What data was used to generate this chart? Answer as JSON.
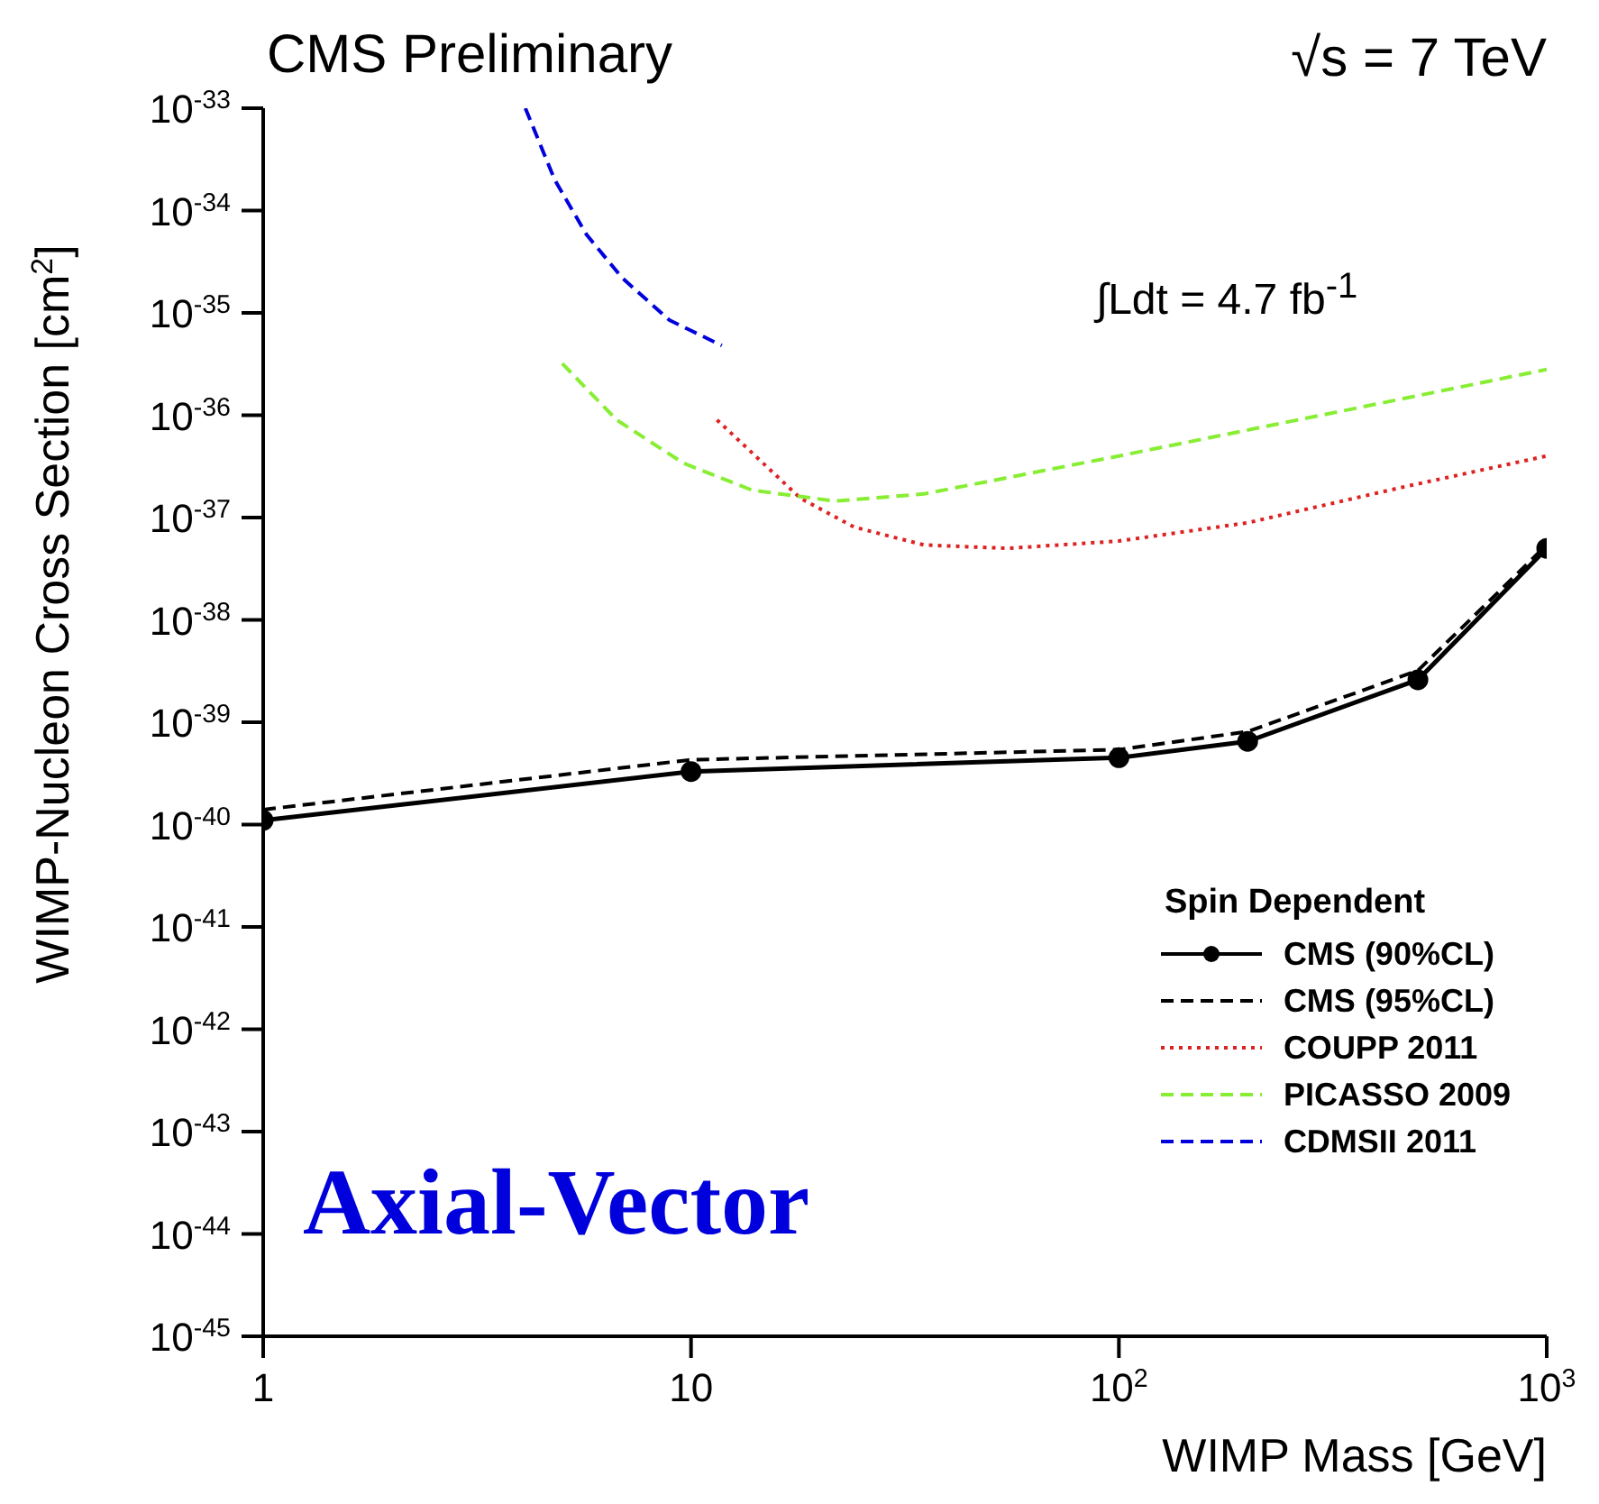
{
  "chart_data": {
    "type": "line",
    "title": "CMS Preliminary",
    "xlabel": "WIMP Mass [GeV]",
    "ylabel": "WIMP-Nucleon Cross Section [cm$^{2}$]",
    "legend_title": "Spin Dependent",
    "legend": "bottom right",
    "log": "xy",
    "xlim": [
      1,
      1000
    ],
    "xticks": [
      1,
      10,
      {
        "value": 100,
        "label": "10$^{2}$"
      },
      {
        "value": 1000,
        "label": "10$^{3}$"
      }
    ],
    "ylim": [
      1e-45,
      1e-33
    ],
    "yticks": [
      {
        "value": 1e-45,
        "label": "10$^{-45}$"
      },
      {
        "value": 1e-44,
        "label": "10$^{-44}$"
      },
      {
        "value": 1e-43,
        "label": "10$^{-43}$"
      },
      {
        "value": 1e-42,
        "label": "10$^{-42}$"
      },
      {
        "value": 1e-41,
        "label": "10$^{-41}$"
      },
      {
        "value": 1e-40,
        "label": "10$^{-40}$"
      },
      {
        "value": 1e-39,
        "label": "10$^{-39}$"
      },
      {
        "value": 1e-38,
        "label": "10$^{-38}$"
      },
      {
        "value": 1e-37,
        "label": "10$^{-37}$"
      },
      {
        "value": 1e-36,
        "label": "10$^{-36}$"
      },
      {
        "value": 1e-35,
        "label": "10$^{-35}$"
      },
      {
        "value": 1e-34,
        "label": "10$^{-34}$"
      },
      {
        "value": 1e-33,
        "label": "10$^{-33}$"
      }
    ],
    "annotations": [
      "√s = 7 TeV",
      "∫Ldt = 4.7 fb$^{-1}$",
      "Axial-Vector"
    ],
    "series": [
      {
        "name": "CMS (90%CL)",
        "color": "#000000",
        "line_style": "solid",
        "marker": "circle",
        "x": [
          1,
          10,
          100,
          200,
          500,
          1000
        ],
        "values": [
          1.1e-40,
          3.3e-40,
          4.5e-40,
          6.5e-40,
          2.6e-39,
          5e-38
        ]
      },
      {
        "name": "CMS (95%CL)",
        "color": "#000000",
        "line_style": "dashed",
        "x": [
          1,
          10,
          100,
          200,
          500,
          1000
        ],
        "values": [
          1.4e-40,
          4.3e-40,
          5.4e-40,
          8.1e-40,
          3.2e-39,
          5.4e-38
        ]
      },
      {
        "name": "COUPP 2011",
        "color": "#dd2222",
        "line_style": "dotted",
        "x": [
          11.5,
          18,
          24,
          35,
          55,
          100,
          200,
          465,
          1000
        ],
        "values": [
          9e-37,
          1.55e-37,
          8.1e-38,
          5.4e-38,
          5e-38,
          5.9e-38,
          8.9e-38,
          2e-37,
          4e-37
        ]
      },
      {
        "name": "PICASSO 2009",
        "color": "#88ee33",
        "line_style": "dashed",
        "x": [
          5.0,
          6.7,
          9.6,
          13.9,
          21.7,
          35,
          100,
          322,
          1000
        ],
        "values": [
          3.2e-36,
          9e-37,
          3.4e-37,
          1.85e-37,
          1.45e-37,
          1.7e-37,
          4e-37,
          1.07e-36,
          2.8e-36
        ]
      },
      {
        "name": "CDMSII 2011",
        "color": "#0000dd",
        "line_style": "dashed",
        "x": [
          4.1,
          4.8,
          5.7,
          6.9,
          8.9,
          11.8
        ],
        "values": [
          1e-33,
          2e-34,
          5.8e-35,
          2.2e-35,
          8.5e-36,
          4.8e-36
        ]
      }
    ]
  }
}
